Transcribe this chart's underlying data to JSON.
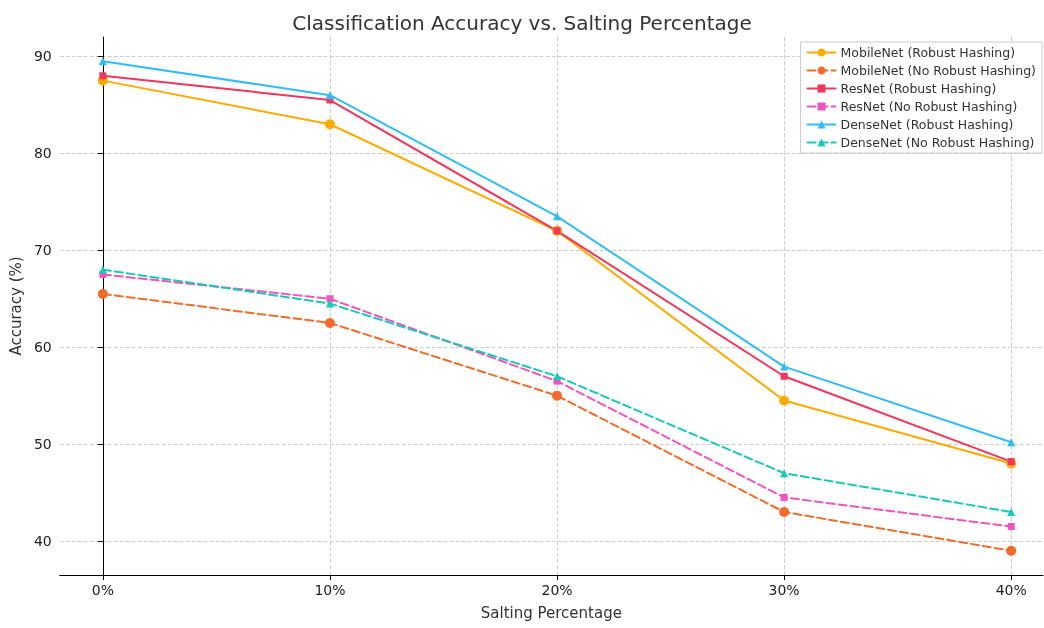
{
  "chart_data": {
    "type": "line",
    "title": "Classification Accuracy vs. Salting Percentage",
    "xlabel": "Salting Percentage",
    "ylabel": "Accuracy (%)",
    "x": [
      0,
      10,
      20,
      30,
      40
    ],
    "xlim": [
      -1.9,
      41.4
    ],
    "xticks": [
      {
        "value": 0,
        "label": "0%"
      },
      {
        "value": 10,
        "label": "10%"
      },
      {
        "value": 20,
        "label": "20%"
      },
      {
        "value": 30,
        "label": "30%"
      },
      {
        "value": 40,
        "label": "40%"
      }
    ],
    "ylim": [
      36.5,
      92
    ],
    "yticks": [
      40,
      50,
      60,
      70,
      80,
      90
    ],
    "grid": true,
    "legend": "top right",
    "series": [
      {
        "name": "MobileNet (Robust Hashing)",
        "color": "#ffaa00",
        "marker": "circle",
        "line_style": "solid",
        "values": [
          87.5,
          83,
          72,
          54.5,
          48
        ]
      },
      {
        "name": "MobileNet (No Robust Hashing)",
        "color": "#f26b2a",
        "marker": "circle",
        "line_style": "dashed",
        "values": [
          65.5,
          62.5,
          55,
          43,
          39
        ]
      },
      {
        "name": "ResNet (Robust Hashing)",
        "color": "#f0365a",
        "marker": "square",
        "line_style": "solid",
        "values": [
          88,
          85.5,
          72,
          57,
          48.2
        ]
      },
      {
        "name": "ResNet (No Robust Hashing)",
        "color": "#f054c0",
        "marker": "square",
        "line_style": "dashed",
        "values": [
          67.5,
          65,
          56.5,
          44.5,
          41.5
        ]
      },
      {
        "name": "DenseNet (Robust Hashing)",
        "color": "#2ebdf7",
        "marker": "triangle",
        "line_style": "solid",
        "values": [
          89.5,
          86,
          73.5,
          58,
          50.2
        ]
      },
      {
        "name": "DenseNet (No Robust Hashing)",
        "color": "#18c9b8",
        "marker": "triangle",
        "line_style": "dashed",
        "values": [
          68,
          64.5,
          57,
          47,
          43
        ]
      }
    ]
  }
}
